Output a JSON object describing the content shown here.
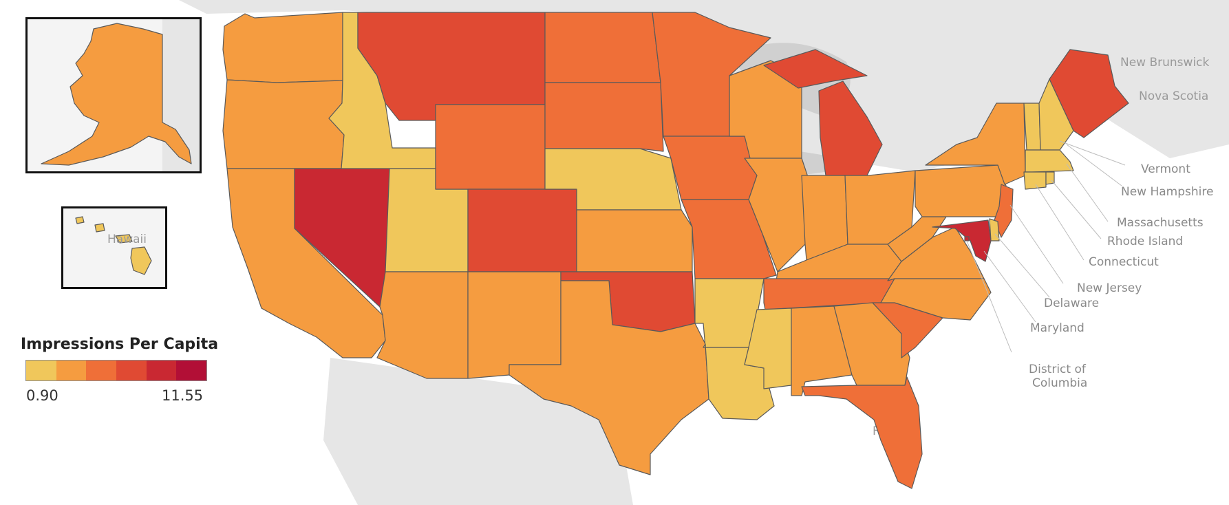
{
  "legend": {
    "title": "Impressions Per Capita",
    "min_label": "0.90",
    "max_label": "11.55",
    "min": 0.9,
    "max": 11.55,
    "colors": [
      "#f0c75b",
      "#f59c40",
      "#ef6f38",
      "#e04a33",
      "#c92832",
      "#b20f36"
    ]
  },
  "basemap_labels": [
    "New Brunswick",
    "Nova Scotia",
    "Hawaii",
    "Florida"
  ],
  "inset_labels": {
    "hawaii": "Hawaii"
  },
  "callouts": [
    "Vermont",
    "New Hampshire",
    "Massachusetts",
    "Rhode Island",
    "Connecticut",
    "New Jersey",
    "Delaware",
    "Maryland",
    "District of",
    "Columbia"
  ],
  "states": {
    "washington": 2,
    "oregon": 2,
    "california": 2,
    "nevada": 5,
    "idaho": 1,
    "utah": 1,
    "arizona": 2,
    "montana": 4,
    "wyoming": 3,
    "colorado": 4,
    "new-mexico": 2,
    "north-dakota": 3,
    "south-dakota": 3,
    "nebraska": 1,
    "kansas": 2,
    "oklahoma": 4,
    "texas": 2,
    "minnesota": 3,
    "iowa": 3,
    "missouri": 3,
    "arkansas": 1,
    "louisiana": 1,
    "wisconsin": 2,
    "illinois": 2,
    "michigan": 4,
    "indiana": 2,
    "ohio": 2,
    "kentucky": 2,
    "tennessee": 3,
    "mississippi": 1,
    "alabama": 2,
    "georgia": 2,
    "florida": 3,
    "south-carolina": 3,
    "north-carolina": 2,
    "virginia": 2,
    "west-virginia": 2,
    "pennsylvania": 2,
    "new-york": 2,
    "maine": 4,
    "vermont": 1,
    "new-hampshire": 1,
    "massachusetts": 1,
    "connecticut": 1,
    "rhode-island": 1,
    "new-jersey": 3,
    "delaware": 1,
    "maryland": 5,
    "alaska": 2,
    "hawaii": 1
  }
}
